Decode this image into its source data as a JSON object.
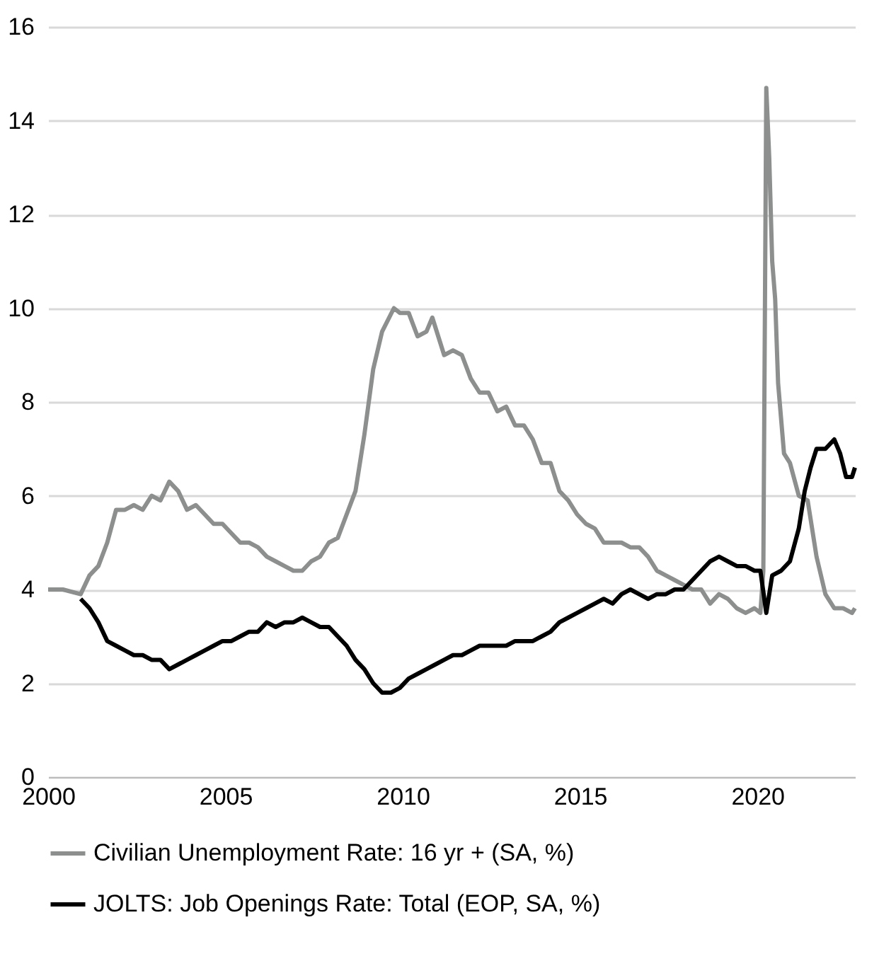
{
  "chart_data": {
    "type": "line",
    "xlim": [
      "2000-01",
      "2022-10"
    ],
    "ylim": [
      0,
      16
    ],
    "yticks": [
      0,
      2,
      4,
      6,
      8,
      10,
      12,
      14,
      16
    ],
    "xticks": [
      {
        "value": "2000-01",
        "label": "2000"
      },
      {
        "value": "2005-01",
        "label": "2005"
      },
      {
        "value": "2010-01",
        "label": "2010"
      },
      {
        "value": "2015-01",
        "label": "2015"
      },
      {
        "value": "2020-01",
        "label": "2020"
      }
    ],
    "grid": "y",
    "legend": "bottom",
    "marker": "none",
    "line_style": "solid",
    "series": [
      {
        "name": "Civilian Unemployment Rate: 16 yr + (SA, %)",
        "color": "#8c8f8e",
        "x": [
          "2000-01",
          "2000-06",
          "2000-12",
          "2001-03",
          "2001-06",
          "2001-09",
          "2001-12",
          "2002-03",
          "2002-06",
          "2002-09",
          "2002-12",
          "2003-03",
          "2003-06",
          "2003-09",
          "2003-12",
          "2004-03",
          "2004-06",
          "2004-09",
          "2004-12",
          "2005-03",
          "2005-06",
          "2005-09",
          "2005-12",
          "2006-03",
          "2006-06",
          "2006-09",
          "2006-12",
          "2007-03",
          "2007-06",
          "2007-09",
          "2007-12",
          "2008-03",
          "2008-06",
          "2008-09",
          "2008-12",
          "2009-03",
          "2009-06",
          "2009-10",
          "2009-12",
          "2010-03",
          "2010-06",
          "2010-09",
          "2010-11",
          "2011-03",
          "2011-06",
          "2011-09",
          "2011-12",
          "2012-03",
          "2012-06",
          "2012-09",
          "2012-12",
          "2013-03",
          "2013-06",
          "2013-09",
          "2013-12",
          "2014-03",
          "2014-06",
          "2014-09",
          "2014-12",
          "2015-03",
          "2015-06",
          "2015-09",
          "2015-12",
          "2016-03",
          "2016-06",
          "2016-09",
          "2016-12",
          "2017-03",
          "2017-06",
          "2017-09",
          "2017-12",
          "2018-03",
          "2018-06",
          "2018-09",
          "2018-12",
          "2019-03",
          "2019-06",
          "2019-09",
          "2019-12",
          "2020-02",
          "2020-03",
          "2020-04",
          "2020-05",
          "2020-06",
          "2020-07",
          "2020-08",
          "2020-10",
          "2020-12",
          "2021-03",
          "2021-06",
          "2021-09",
          "2021-12",
          "2022-03",
          "2022-06",
          "2022-09",
          "2022-10"
        ],
        "values": [
          4.0,
          4.0,
          3.9,
          4.3,
          4.5,
          5.0,
          5.7,
          5.7,
          5.8,
          5.7,
          6.0,
          5.9,
          6.3,
          6.1,
          5.7,
          5.8,
          5.6,
          5.4,
          5.4,
          5.2,
          5.0,
          5.0,
          4.9,
          4.7,
          4.6,
          4.5,
          4.4,
          4.4,
          4.6,
          4.7,
          5.0,
          5.1,
          5.6,
          6.1,
          7.3,
          8.7,
          9.5,
          10.0,
          9.9,
          9.9,
          9.4,
          9.5,
          9.8,
          9.0,
          9.1,
          9.0,
          8.5,
          8.2,
          8.2,
          7.8,
          7.9,
          7.5,
          7.5,
          7.2,
          6.7,
          6.7,
          6.1,
          5.9,
          5.6,
          5.4,
          5.3,
          5.0,
          5.0,
          5.0,
          4.9,
          4.9,
          4.7,
          4.4,
          4.3,
          4.2,
          4.1,
          4.0,
          4.0,
          3.7,
          3.9,
          3.8,
          3.6,
          3.5,
          3.6,
          3.5,
          4.4,
          14.7,
          13.2,
          11.0,
          10.2,
          8.4,
          6.9,
          6.7,
          6.0,
          5.9,
          4.7,
          3.9,
          3.6,
          3.6,
          3.5,
          3.6
        ]
      },
      {
        "name": "JOLTS: Job Openings Rate: Total (EOP, SA, %)",
        "color": "#000000",
        "x": [
          "2000-12",
          "2001-03",
          "2001-06",
          "2001-09",
          "2001-12",
          "2002-03",
          "2002-06",
          "2002-09",
          "2002-12",
          "2003-03",
          "2003-06",
          "2003-09",
          "2003-12",
          "2004-03",
          "2004-06",
          "2004-09",
          "2004-12",
          "2005-03",
          "2005-06",
          "2005-09",
          "2005-12",
          "2006-03",
          "2006-06",
          "2006-09",
          "2006-12",
          "2007-03",
          "2007-06",
          "2007-09",
          "2007-12",
          "2008-03",
          "2008-06",
          "2008-09",
          "2008-12",
          "2009-03",
          "2009-06",
          "2009-09",
          "2009-12",
          "2010-03",
          "2010-06",
          "2010-09",
          "2010-12",
          "2011-03",
          "2011-06",
          "2011-09",
          "2011-12",
          "2012-03",
          "2012-06",
          "2012-09",
          "2012-12",
          "2013-03",
          "2013-06",
          "2013-09",
          "2013-12",
          "2014-03",
          "2014-06",
          "2014-09",
          "2014-12",
          "2015-03",
          "2015-06",
          "2015-09",
          "2015-12",
          "2016-03",
          "2016-06",
          "2016-09",
          "2016-12",
          "2017-03",
          "2017-06",
          "2017-09",
          "2017-12",
          "2018-03",
          "2018-06",
          "2018-09",
          "2018-12",
          "2019-03",
          "2019-06",
          "2019-09",
          "2019-12",
          "2020-02",
          "2020-04",
          "2020-06",
          "2020-09",
          "2020-12",
          "2021-03",
          "2021-05",
          "2021-07",
          "2021-09",
          "2021-12",
          "2022-03",
          "2022-05",
          "2022-07",
          "2022-09",
          "2022-10"
        ],
        "values": [
          3.8,
          3.6,
          3.3,
          2.9,
          2.8,
          2.7,
          2.6,
          2.6,
          2.5,
          2.5,
          2.3,
          2.4,
          2.5,
          2.6,
          2.7,
          2.8,
          2.9,
          2.9,
          3.0,
          3.1,
          3.1,
          3.3,
          3.2,
          3.3,
          3.3,
          3.4,
          3.3,
          3.2,
          3.2,
          3.0,
          2.8,
          2.5,
          2.3,
          2.0,
          1.8,
          1.8,
          1.9,
          2.1,
          2.2,
          2.3,
          2.4,
          2.5,
          2.6,
          2.6,
          2.7,
          2.8,
          2.8,
          2.8,
          2.8,
          2.9,
          2.9,
          2.9,
          3.0,
          3.1,
          3.3,
          3.4,
          3.5,
          3.6,
          3.7,
          3.8,
          3.7,
          3.9,
          4.0,
          3.9,
          3.8,
          3.9,
          3.9,
          4.0,
          4.0,
          4.2,
          4.4,
          4.6,
          4.7,
          4.6,
          4.5,
          4.5,
          4.4,
          4.4,
          3.5,
          4.3,
          4.4,
          4.6,
          5.3,
          6.1,
          6.6,
          7.0,
          7.0,
          7.2,
          6.9,
          6.4,
          6.4,
          6.6
        ]
      }
    ]
  }
}
